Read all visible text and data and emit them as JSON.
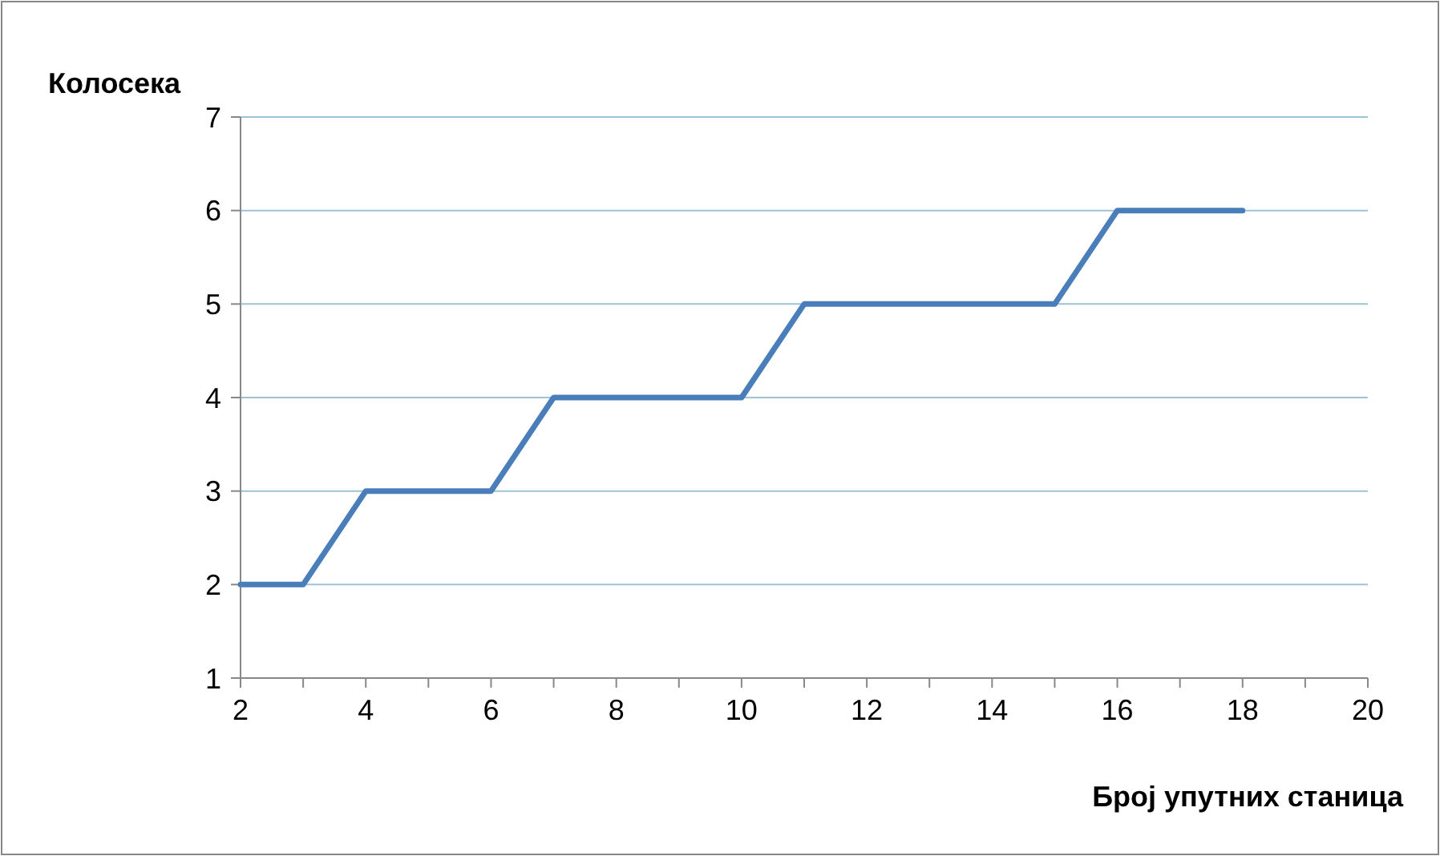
{
  "chart_data": {
    "type": "line",
    "xlabel": "Број упутних станица",
    "ylabel": "Колосека",
    "x": [
      2,
      3,
      4,
      5,
      6,
      7,
      8,
      9,
      10,
      11,
      12,
      13,
      14,
      15,
      16,
      17,
      18
    ],
    "series": [
      {
        "color": "#4a7ebb",
        "values": [
          2,
          2,
          3,
          3,
          3,
          4,
          4,
          4,
          4,
          5,
          5,
          5,
          5,
          5,
          6,
          6,
          6
        ]
      }
    ],
    "xlim": [
      2,
      20
    ],
    "xticks": [
      2,
      {
        "value": 3,
        "label": null
      },
      4,
      {
        "value": 5,
        "label": null
      },
      6,
      {
        "value": 7,
        "label": null
      },
      8,
      {
        "value": 9,
        "label": null
      },
      10,
      {
        "value": 11,
        "label": null
      },
      12,
      {
        "value": 13,
        "label": null
      },
      14,
      {
        "value": 15,
        "label": null
      },
      16,
      {
        "value": 17,
        "label": null
      },
      18,
      {
        "value": 19,
        "label": null
      },
      20
    ],
    "ylim": [
      1,
      7
    ],
    "yticks": [
      1,
      2,
      3,
      4,
      5,
      6,
      7
    ],
    "grid": "y",
    "marker": "none",
    "line_style": "solid"
  }
}
